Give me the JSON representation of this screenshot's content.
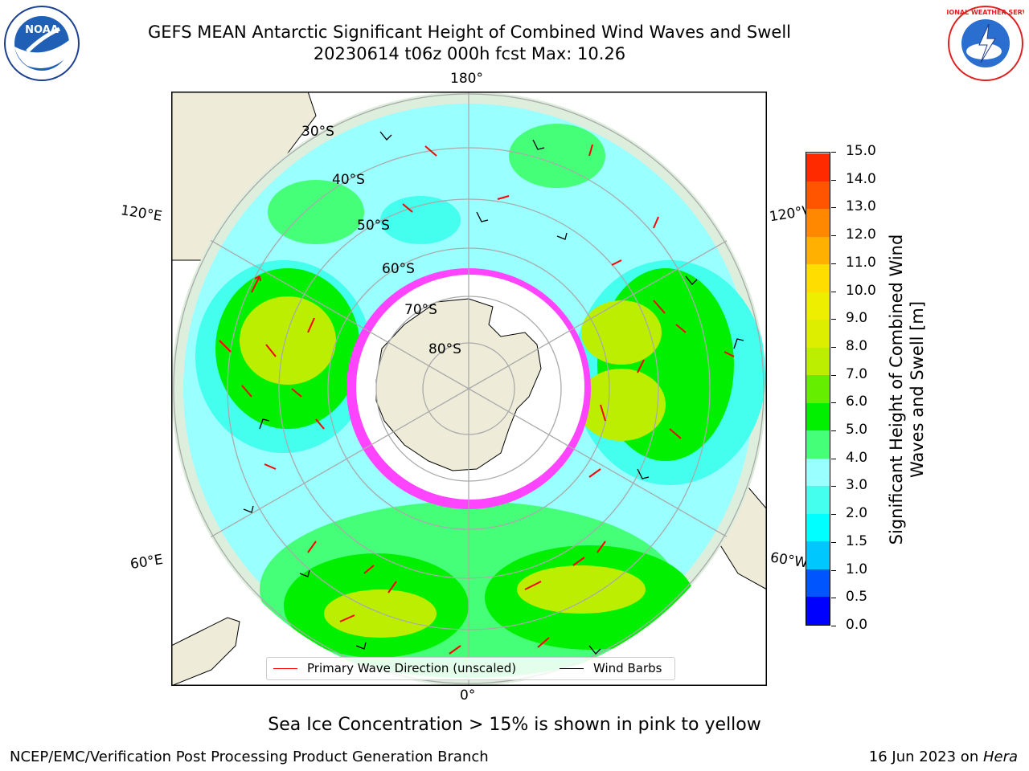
{
  "header": {
    "title": "GEFS MEAN Antarctic Significant Height of Combined Wind Waves and Swell",
    "subtitle": "20230614 t06z 000h fcst   Max: 10.26"
  },
  "logos": {
    "left": "NOAA",
    "right": "NATIONAL WEATHER SERVICE"
  },
  "map": {
    "projection": "south-polar-stereographic",
    "longitude_labels": {
      "top": "180°",
      "bottom": "0°",
      "left_upper": "120°E",
      "left_lower": "60°E",
      "right_upper": "120°W",
      "right_lower": "60°W"
    },
    "latitude_labels": [
      "30°S",
      "40°S",
      "50°S",
      "60°S",
      "70°S",
      "80°S"
    ],
    "colors": {
      "land": "#eeecd8",
      "ocean_low": "#99ffff",
      "sea_ice": "#ff44ff",
      "grid": "#aaaaaa"
    }
  },
  "legend": {
    "items": [
      {
        "label": "Primary Wave Direction (unscaled)",
        "color": "#ff0000"
      },
      {
        "label": "Wind Barbs",
        "color": "#000000"
      }
    ]
  },
  "chart_data": {
    "type": "heatmap",
    "colorbar": {
      "label": "Significant Height of Combined Wind Waves and Swell [m]",
      "ticks": [
        "0.0",
        "0.5",
        "1.0",
        "1.5",
        "2.0",
        "3.0",
        "4.0",
        "5.0",
        "6.0",
        "7.0",
        "8.0",
        "9.0",
        "10.0",
        "11.0",
        "12.0",
        "13.0",
        "14.0",
        "15.0"
      ],
      "bins": [
        {
          "from": 0.0,
          "to": 0.5,
          "color": "#0000ff"
        },
        {
          "from": 0.5,
          "to": 1.0,
          "color": "#0055ff"
        },
        {
          "from": 1.0,
          "to": 1.5,
          "color": "#00c8ff"
        },
        {
          "from": 1.5,
          "to": 2.0,
          "color": "#00ffff"
        },
        {
          "from": 2.0,
          "to": 3.0,
          "color": "#44ffee"
        },
        {
          "from": 3.0,
          "to": 4.0,
          "color": "#99ffff"
        },
        {
          "from": 4.0,
          "to": 5.0,
          "color": "#44ff77"
        },
        {
          "from": 5.0,
          "to": 6.0,
          "color": "#00f000"
        },
        {
          "from": 6.0,
          "to": 7.0,
          "color": "#66ee00"
        },
        {
          "from": 7.0,
          "to": 8.0,
          "color": "#bbee00"
        },
        {
          "from": 8.0,
          "to": 9.0,
          "color": "#ddee00"
        },
        {
          "from": 9.0,
          "to": 10.0,
          "color": "#eeee00"
        },
        {
          "from": 10.0,
          "to": 11.0,
          "color": "#ffdd00"
        },
        {
          "from": 11.0,
          "to": 12.0,
          "color": "#ffb000"
        },
        {
          "from": 12.0,
          "to": 13.0,
          "color": "#ff8800"
        },
        {
          "from": 13.0,
          "to": 14.0,
          "color": "#ff5500"
        },
        {
          "from": 14.0,
          "to": 15.0,
          "color": "#ff2a00"
        }
      ],
      "range": [
        0,
        15
      ]
    },
    "max_value": 10.26
  },
  "footer": {
    "note": "Sea Ice Concentration > 15% is shown in pink to yellow",
    "left": "NCEP/EMC/Verification Post Processing Product Generation Branch",
    "right_date": "16 Jun 2023 on ",
    "right_host": "Hera"
  }
}
